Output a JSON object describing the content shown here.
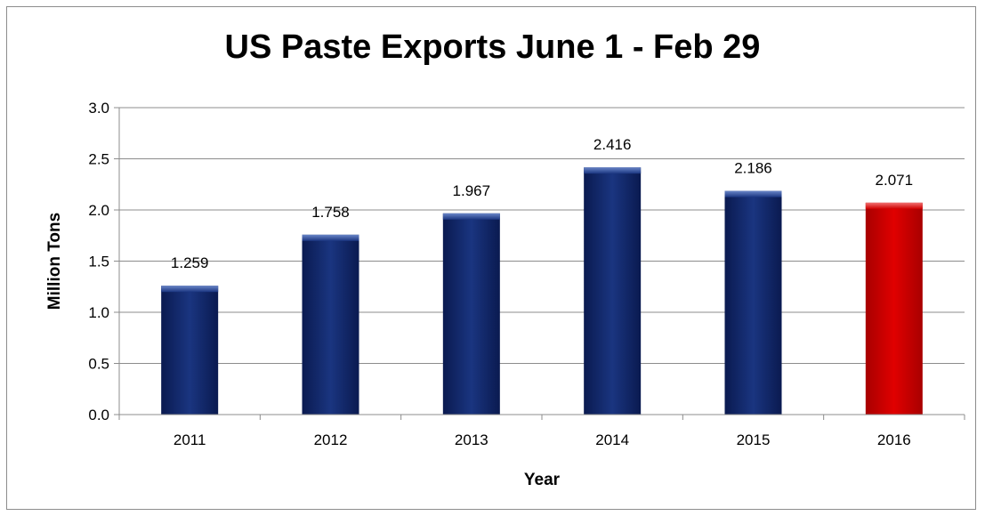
{
  "chart_data": {
    "type": "bar",
    "title": "US Paste Exports June 1 - Feb 29",
    "xlabel": "Year",
    "ylabel": "Million Tons",
    "categories": [
      "2011",
      "2012",
      "2013",
      "2014",
      "2015",
      "2016"
    ],
    "values": [
      1.259,
      1.758,
      1.967,
      2.416,
      2.186,
      2.071
    ],
    "data_labels": [
      "1.259",
      "1.758",
      "1.967",
      "2.416",
      "2.186",
      "2.071"
    ],
    "ylim": [
      0,
      3.0
    ],
    "yticks": [
      0.0,
      0.5,
      1.0,
      1.5,
      2.0,
      2.5,
      3.0
    ],
    "ytick_labels": [
      "0.0",
      "0.5",
      "1.0",
      "1.5",
      "2.0",
      "2.5",
      "3.0"
    ],
    "grid": true,
    "legend": "none",
    "colors": {
      "bar": "#12256b",
      "highlight_bar": "#cc0000",
      "highlight_category": "2016",
      "gridline": "#8c8c8c"
    }
  }
}
